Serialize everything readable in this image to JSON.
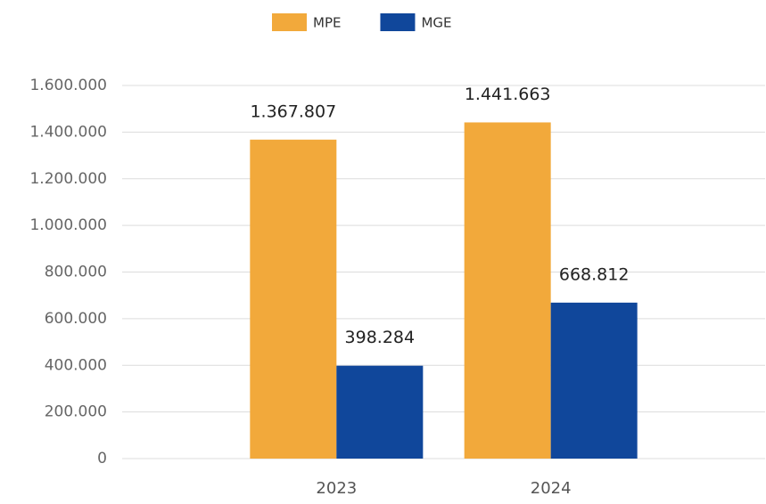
{
  "chart_data": {
    "type": "bar",
    "categories": [
      "2023",
      "2024"
    ],
    "series": [
      {
        "name": "MPE",
        "color": "#f2a93b",
        "values": [
          1367807,
          1441663
        ],
        "value_labels": [
          "1.367.807",
          "1.441.663"
        ]
      },
      {
        "name": "MGE",
        "color": "#10479b",
        "values": [
          398284,
          668812
        ],
        "value_labels": [
          "398.284",
          "668.812"
        ]
      }
    ],
    "ylim": [
      0,
      1600000
    ],
    "yticks": [
      0,
      {
        "value": 200000,
        "label": "200.000"
      },
      {
        "value": 400000,
        "label": "400.000"
      },
      {
        "value": 600000,
        "label": "600.000"
      },
      {
        "value": 800000,
        "label": "800.000"
      },
      {
        "value": 1000000,
        "label": "1.000.000"
      },
      {
        "value": 1200000,
        "label": "1.200.000"
      },
      {
        "value": 1400000,
        "label": "1.400.000"
      },
      {
        "value": 1600000,
        "label": "1.600.000"
      }
    ],
    "grid": true,
    "legend": "top"
  }
}
